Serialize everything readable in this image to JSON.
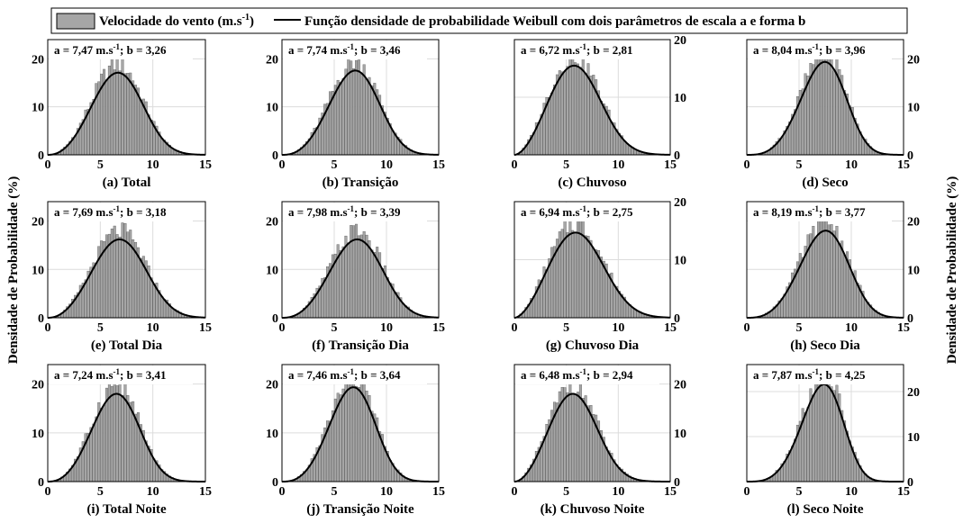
{
  "legend": {
    "hist_label_pre": "Velocidade do vento (m.s",
    "hist_label_sup": "-1",
    "hist_label_post": ")",
    "line_label": "Função densidade de probabilidade Weibull com dois parâmetros de escala a e forma b",
    "hist_color": "#a6a6a6",
    "line_color": "#000000"
  },
  "y_label": "Densidade de Probabilidade (%)",
  "chart_data": [
    {
      "id": "a",
      "type": "bar",
      "caption": "(a) Total",
      "a": "7,47",
      "b": "3,26",
      "a_value": 7.47,
      "b_value": 3.26,
      "xlim": [
        0,
        15
      ],
      "xticks": [
        "0",
        "5",
        "10",
        "15"
      ],
      "ylim": [
        0,
        24
      ],
      "yticks": [
        "0",
        "10",
        "20"
      ],
      "y_axis_side": "left",
      "peak_percent": 19
    },
    {
      "id": "b",
      "type": "bar",
      "caption": "(b) Transição",
      "a": "7,74",
      "b": "3,46",
      "a_value": 7.74,
      "b_value": 3.46,
      "xlim": [
        0,
        15
      ],
      "xticks": [
        "0",
        "5",
        "10",
        "15"
      ],
      "ylim": [
        0,
        24
      ],
      "yticks": [
        "0",
        "10",
        "20"
      ],
      "y_axis_side": "left",
      "peak_percent": 19.5
    },
    {
      "id": "c",
      "type": "bar",
      "caption": "(c) Chuvoso",
      "a": "6,72",
      "b": "2,81",
      "a_value": 6.72,
      "b_value": 2.81,
      "xlim": [
        0,
        15
      ],
      "xticks": [
        "0",
        "5",
        "10",
        "15"
      ],
      "ylim": [
        0,
        20
      ],
      "yticks": [
        "0",
        "10",
        "20"
      ],
      "y_axis_side": "right",
      "peak_percent": 17.2
    },
    {
      "id": "d",
      "type": "bar",
      "caption": "(d) Seco",
      "a": "8,04",
      "b": "3,96",
      "a_value": 8.04,
      "b_value": 3.96,
      "xlim": [
        0,
        15
      ],
      "xticks": [
        "0",
        "5",
        "10",
        "15"
      ],
      "ylim": [
        0,
        24
      ],
      "yticks": [
        "0",
        "10",
        "20"
      ],
      "y_axis_side": "right",
      "peak_percent": 21.5
    },
    {
      "id": "e",
      "type": "bar",
      "caption": "(e) Total Dia",
      "a": "7,69",
      "b": "3,18",
      "a_value": 7.69,
      "b_value": 3.18,
      "xlim": [
        0,
        15
      ],
      "xticks": [
        "0",
        "5",
        "10",
        "15"
      ],
      "ylim": [
        0,
        24
      ],
      "yticks": [
        "0",
        "10",
        "20"
      ],
      "y_axis_side": "left",
      "peak_percent": 18
    },
    {
      "id": "f",
      "type": "bar",
      "caption": "(f) Transição Dia",
      "a": "7,98",
      "b": "3,39",
      "a_value": 7.98,
      "b_value": 3.39,
      "xlim": [
        0,
        15
      ],
      "xticks": [
        "0",
        "5",
        "10",
        "15"
      ],
      "ylim": [
        0,
        24
      ],
      "yticks": [
        "0",
        "10",
        "20"
      ],
      "y_axis_side": "left",
      "peak_percent": 18
    },
    {
      "id": "g",
      "type": "bar",
      "caption": "(g) Chuvoso Dia",
      "a": "6,94",
      "b": "2,75",
      "a_value": 6.94,
      "b_value": 2.75,
      "xlim": [
        0,
        15
      ],
      "xticks": [
        "0",
        "5",
        "10",
        "15"
      ],
      "ylim": [
        0,
        20
      ],
      "yticks": [
        "0",
        "10",
        "20"
      ],
      "y_axis_side": "right",
      "peak_percent": 16.3
    },
    {
      "id": "h",
      "type": "bar",
      "caption": "(h) Seco Dia",
      "a": "8,19",
      "b": "3,77",
      "a_value": 8.19,
      "b_value": 3.77,
      "xlim": [
        0,
        15
      ],
      "xticks": [
        "0",
        "5",
        "10",
        "15"
      ],
      "ylim": [
        0,
        24
      ],
      "yticks": [
        "0",
        "10",
        "20"
      ],
      "y_axis_side": "right",
      "peak_percent": 20
    },
    {
      "id": "i",
      "type": "bar",
      "caption": "(i) Total Noite",
      "a": "7,24",
      "b": "3,41",
      "a_value": 7.24,
      "b_value": 3.41,
      "xlim": [
        0,
        15
      ],
      "xticks": [
        "0",
        "5",
        "10",
        "15"
      ],
      "ylim": [
        0,
        24
      ],
      "yticks": [
        "0",
        "10",
        "20"
      ],
      "y_axis_side": "left",
      "peak_percent": 20
    },
    {
      "id": "j",
      "type": "bar",
      "caption": "(j) Transição Noite",
      "a": "7,46",
      "b": "3,64",
      "a_value": 7.46,
      "b_value": 3.64,
      "xlim": [
        0,
        15
      ],
      "xticks": [
        "0",
        "5",
        "10",
        "15"
      ],
      "ylim": [
        0,
        24
      ],
      "yticks": [
        "0",
        "10",
        "20"
      ],
      "y_axis_side": "left",
      "peak_percent": 21.5
    },
    {
      "id": "k",
      "type": "bar",
      "caption": "(k) Chuvoso Noite",
      "a": "6,48",
      "b": "2,94",
      "a_value": 6.48,
      "b_value": 2.94,
      "xlim": [
        0,
        15
      ],
      "xticks": [
        "0",
        "5",
        "10",
        "15"
      ],
      "ylim": [
        0,
        24
      ],
      "yticks": [
        "0",
        "10",
        "20"
      ],
      "y_axis_side": "right",
      "peak_percent": 20
    },
    {
      "id": "l",
      "type": "bar",
      "caption": "(l) Seco Noite",
      "a": "7,87",
      "b": "4,25",
      "a_value": 7.87,
      "b_value": 4.25,
      "xlim": [
        0,
        15
      ],
      "xticks": [
        "0",
        "5",
        "10",
        "15"
      ],
      "ylim": [
        0,
        26
      ],
      "yticks": [
        "0",
        "10",
        "20"
      ],
      "y_axis_side": "right",
      "peak_percent": 24
    }
  ]
}
